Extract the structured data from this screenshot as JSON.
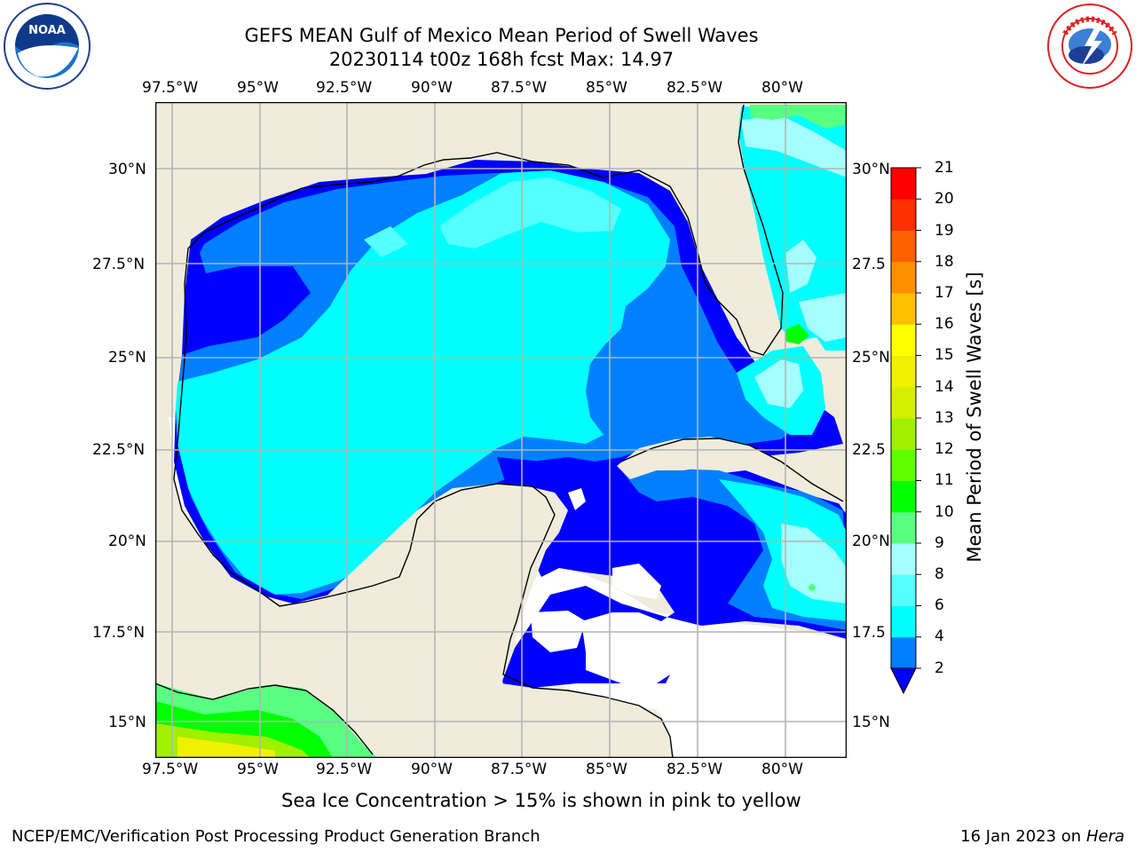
{
  "header": {
    "title_line1": "GEFS MEAN Gulf of Mexico Mean Period of Swell Waves",
    "title_line2": "20230114 t00z 168h fcst   Max: 14.97",
    "noaa_logo": "noaa-logo",
    "nws_logo": "nws-logo"
  },
  "map": {
    "lon_ticks_top": [
      "97.5°W",
      "95°W",
      "92.5°W",
      "90°W",
      "87.5°W",
      "85°W",
      "82.5°W",
      "80°W"
    ],
    "lon_ticks_bottom": [
      "97.5°W",
      "95°W",
      "92.5°W",
      "90°W",
      "87.5°W",
      "85°W",
      "82.5°W",
      "80°W"
    ],
    "lat_ticks_left": [
      "30°N",
      "27.5°N",
      "25°N",
      "22.5°N",
      "20°N",
      "17.5°N",
      "15°N"
    ],
    "lat_ticks_right": [
      "30°N",
      "27.5",
      "25°N",
      "22.5",
      "20°N",
      "17.5",
      "15°N"
    ],
    "colors": {
      "land": "#efecdc",
      "grid": "#b4b4b4",
      "coast": "#000000",
      "no_data": "#ffffff"
    }
  },
  "colorbar": {
    "label": "Mean Period of Swell Waves [s]",
    "levels": [
      "2",
      "4",
      "6",
      "8",
      "9",
      "10",
      "11",
      "12",
      "13",
      "14",
      "15",
      "16",
      "17",
      "18",
      "19",
      "20",
      "21"
    ],
    "colors": [
      "#0000ff",
      "#0080ff",
      "#00ffff",
      "#55ffff",
      "#a6ffff",
      "#58ff80",
      "#00ff00",
      "#60ff00",
      "#a0f000",
      "#d4f000",
      "#f0f000",
      "#ffff00",
      "#ffc000",
      "#ff9000",
      "#ff6000",
      "#ff3000",
      "#ff0000"
    ],
    "under_color": "#0000ff"
  },
  "footer": {
    "note": "Sea Ice Concentration > 15% is shown in pink to yellow",
    "credit": "NCEP/EMC/Verification Post Processing Product Generation Branch",
    "date_prefix": "16 Jan 2023 on ",
    "machine": "Hera"
  }
}
